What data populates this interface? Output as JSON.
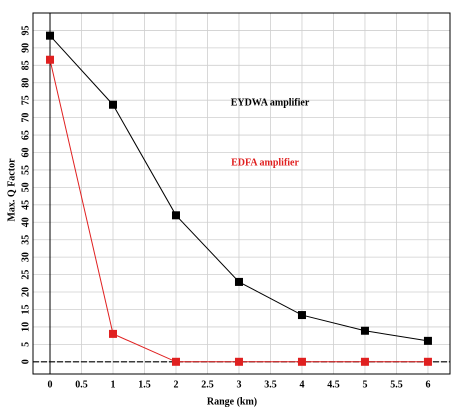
{
  "chart_data": {
    "type": "line",
    "x_label": "Range (km)",
    "y_label": "Max. Q Factor",
    "annotations": [
      {
        "text": "EYDWA amplifier",
        "color": "#000000"
      },
      {
        "text": "EDFA amplifier",
        "color": "#e02020"
      }
    ],
    "x": [
      0,
      1,
      2,
      3,
      4,
      5,
      6
    ],
    "series": [
      {
        "name": "EYDWA amplifier",
        "color": "#000000",
        "values": [
          93.5,
          73.7,
          42,
          22.9,
          13.4,
          8.9,
          6
        ]
      },
      {
        "name": "EDFA amplifier",
        "color": "#e02020",
        "values": [
          86.6,
          8,
          0,
          0,
          0,
          0,
          0
        ]
      }
    ],
    "xlim": [
      -0.27,
      6.35
    ],
    "xticks": [
      0,
      0.5,
      1,
      1.5,
      2,
      2.5,
      3,
      3.5,
      4,
      4.5,
      5,
      5.5,
      6
    ],
    "ylim": [
      -3.5,
      100
    ],
    "yticks": [
      0,
      5,
      10,
      15,
      20,
      25,
      30,
      35,
      40,
      45,
      50,
      55,
      60,
      65,
      70,
      75,
      80,
      85,
      90,
      95
    ],
    "grid": true
  }
}
